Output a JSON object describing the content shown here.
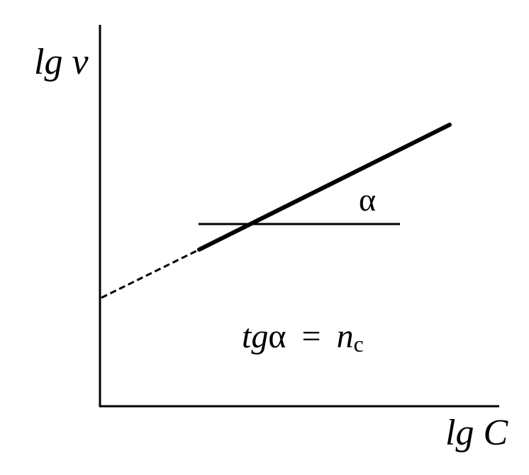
{
  "axes": {
    "y_label": "lg v",
    "x_label": "lg C"
  },
  "angle_label": "α",
  "formula": {
    "lhs_italic": "tg",
    "lhs_symbol": "α",
    "equals": "=",
    "rhs": "n",
    "subscript": "c"
  }
}
